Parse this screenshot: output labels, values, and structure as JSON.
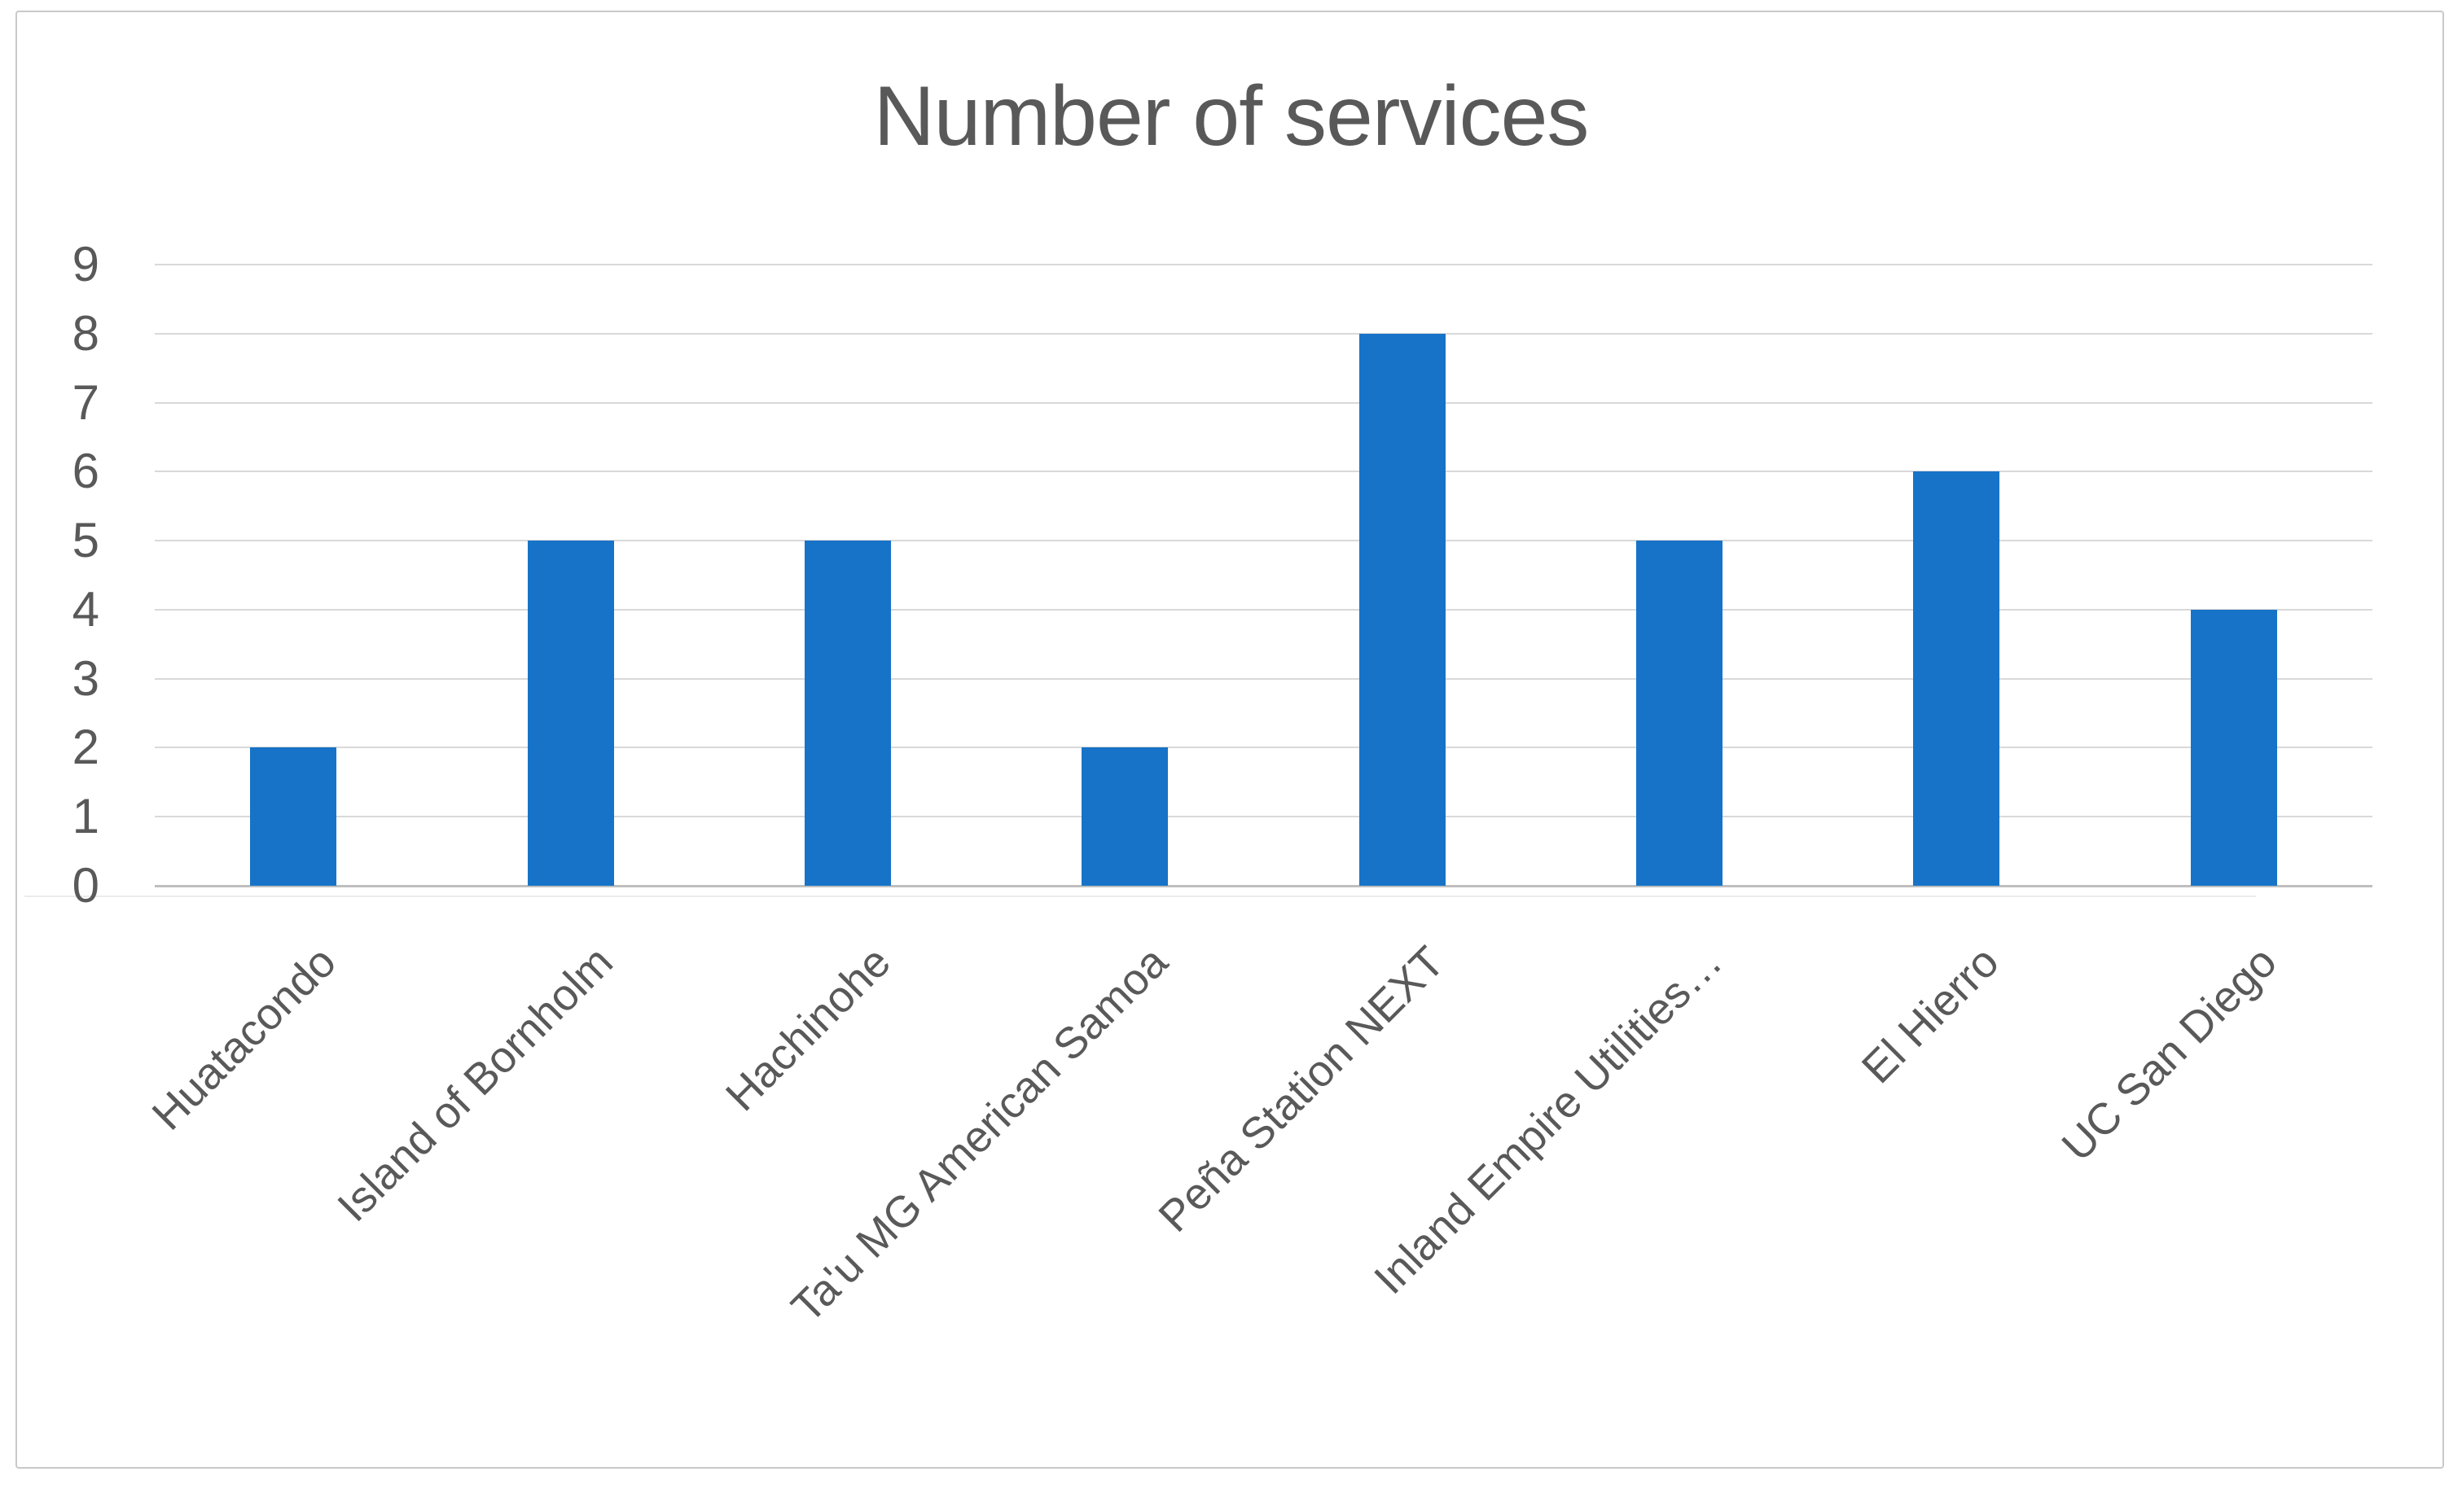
{
  "chart_data": {
    "type": "bar",
    "title": "Number of services",
    "categories": [
      "Huatacondo",
      "Island of Bornholm",
      "Hachinohe",
      "Ta'u MG American Samoa",
      "Peña Station NEXT",
      "Inland Empire Utilities…",
      "El Hierro",
      "UC San Diego"
    ],
    "values": [
      2,
      5,
      5,
      2,
      8,
      5,
      6,
      4
    ],
    "xlabel": "",
    "ylabel": "",
    "ylim": [
      0,
      9
    ],
    "yticks": [
      0,
      1,
      2,
      3,
      4,
      5,
      6,
      7,
      8,
      9
    ],
    "legend": "none",
    "grid": "horizontal",
    "x_label_rotation_deg": 45,
    "colors": {
      "bar_fill": "#1773c8",
      "text": "#595959",
      "gridline": "#d9d9d9",
      "axis_line": "#bfbfbf",
      "axis_line_shadow": "#ececec",
      "frame_border": "#c9c9c9",
      "background": "#ffffff"
    }
  }
}
